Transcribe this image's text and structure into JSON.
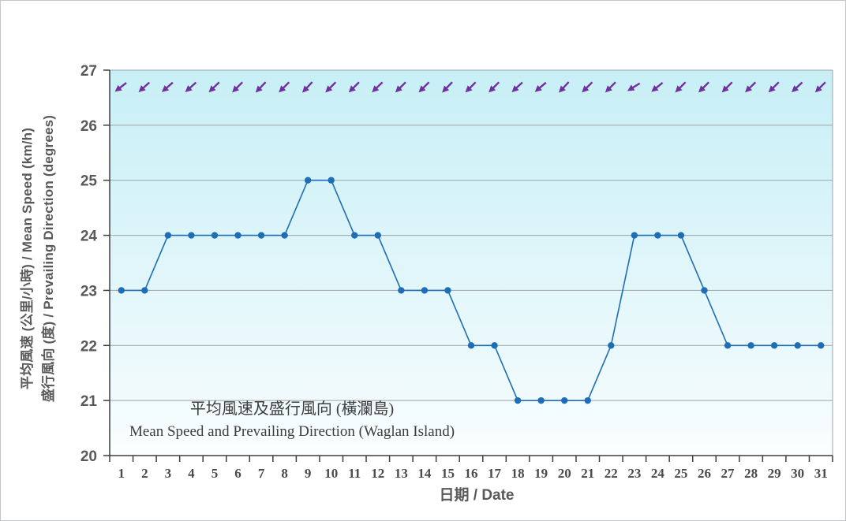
{
  "chart_data": {
    "type": "line",
    "title_line1": "平均風速及盛行風向 (橫瀾島)",
    "title_line2": "Mean Speed and Prevailing Direction (Waglan Island)",
    "xlabel": "日期 / Date",
    "ylabel_line1": "平均風速 (公里/小時) / Mean Speed (km/h)",
    "ylabel_line2": "盛行風向 (度) / Prevailing Direction (degrees)",
    "categories": [
      1,
      2,
      3,
      4,
      5,
      6,
      7,
      8,
      9,
      10,
      11,
      12,
      13,
      14,
      15,
      16,
      17,
      18,
      19,
      20,
      21,
      22,
      23,
      24,
      25,
      26,
      27,
      28,
      29,
      30,
      31
    ],
    "series": [
      {
        "name": "mean-speed-kmh",
        "values": [
          23,
          23,
          24,
          24,
          24,
          24,
          24,
          24,
          25,
          25,
          24,
          24,
          23,
          23,
          23,
          22,
          22,
          21,
          21,
          21,
          21,
          22,
          24,
          24,
          24,
          23,
          22,
          22,
          22,
          22,
          22
        ],
        "color": "#1f6eb5"
      }
    ],
    "direction_arrows": {
      "description": "one purple arrow per day near the top of the plot, all pointing toward the lower-left (wind toward southwest)",
      "y_value": 26.7,
      "color": "#7030a0",
      "screen_angles_deg_cw_from_right": [
        142,
        138,
        139,
        138,
        136,
        135,
        134,
        135,
        133,
        135,
        135,
        136,
        135,
        135,
        134,
        135,
        135,
        137,
        140,
        133,
        135,
        135,
        148,
        141,
        135,
        135,
        135,
        136,
        135,
        137,
        135
      ]
    },
    "ylim": [
      20,
      27
    ],
    "yticks": [
      20,
      21,
      22,
      23,
      24,
      25,
      26,
      27
    ],
    "grid": true,
    "legend": "none",
    "colors": {
      "plot_bg_top": "#c7eff6",
      "plot_bg_bottom": "#fcfeff",
      "gridline": "#9fa3a6",
      "axis": "#3f3f3f",
      "tick_label": "#595959"
    }
  }
}
